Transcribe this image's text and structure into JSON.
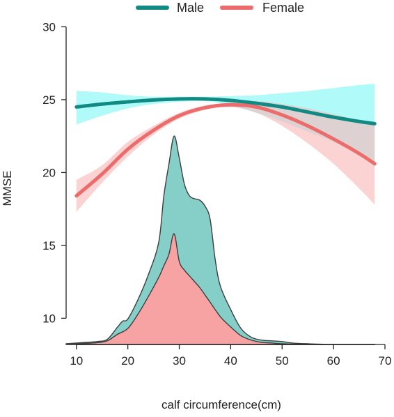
{
  "chart_data": {
    "type": "line",
    "title": "",
    "xlabel": "calf circumference(cm)",
    "ylabel": "MMSE",
    "xlim": [
      8,
      70
    ],
    "ylim": [
      8.2,
      30.5
    ],
    "xticks": [
      "10",
      "20",
      "30",
      "40",
      "50",
      "60",
      "70"
    ],
    "yticks": [
      "10",
      "15",
      "20",
      "25",
      "30"
    ],
    "legend": {
      "placement": "top",
      "entries": [
        "Male",
        "Female"
      ]
    },
    "grid": false,
    "series": [
      {
        "name": "Male",
        "color": "#128a84",
        "band_color": "#7ff7f7",
        "x": [
          10,
          15,
          20,
          25,
          30,
          35,
          40,
          45,
          50,
          55,
          60,
          65,
          68
        ],
        "y": [
          24.5,
          24.7,
          24.85,
          24.98,
          25.05,
          25.05,
          24.95,
          24.75,
          24.5,
          24.15,
          23.8,
          23.5,
          23.35
        ],
        "lower": [
          23.3,
          23.9,
          24.4,
          24.7,
          24.85,
          24.9,
          24.6,
          24.1,
          23.5,
          22.8,
          22.1,
          21.2,
          20.5
        ],
        "upper": [
          25.6,
          25.5,
          25.3,
          25.2,
          25.2,
          25.2,
          25.25,
          25.3,
          25.45,
          25.6,
          25.8,
          26.0,
          26.1
        ]
      },
      {
        "name": "Female",
        "color": "#ec6b6b",
        "band_color": "#f8b8b8",
        "x": [
          10,
          15,
          20,
          25,
          30,
          35,
          40,
          45,
          50,
          55,
          60,
          65,
          68
        ],
        "y": [
          18.4,
          19.9,
          21.6,
          22.9,
          23.9,
          24.45,
          24.65,
          24.5,
          23.95,
          23.2,
          22.3,
          21.3,
          20.6
        ],
        "lower": [
          17.3,
          19.3,
          21.1,
          22.6,
          23.7,
          24.3,
          24.5,
          24.1,
          23.2,
          22.0,
          20.6,
          18.9,
          17.8
        ],
        "upper": [
          19.5,
          20.5,
          22.1,
          23.2,
          24.1,
          24.6,
          24.8,
          24.9,
          24.7,
          24.4,
          24.0,
          23.6,
          23.3
        ]
      }
    ],
    "densities": [
      {
        "name": "Male",
        "fill": "#86cfc9",
        "x": [
          8,
          10,
          12,
          14,
          16,
          18,
          19,
          20,
          22,
          24,
          26,
          27,
          28,
          29,
          30,
          31,
          32,
          33,
          34,
          35,
          36,
          37,
          38,
          40,
          42,
          44,
          46,
          48,
          50,
          52,
          55,
          60,
          65,
          68
        ],
        "y": [
          8.25,
          8.3,
          8.35,
          8.4,
          8.55,
          9.4,
          9.8,
          9.95,
          11.3,
          13.0,
          15.2,
          18.4,
          20.6,
          22.5,
          21.0,
          19.2,
          18.4,
          18.2,
          18.1,
          17.7,
          16.8,
          14.0,
          12.2,
          10.6,
          9.3,
          8.7,
          8.5,
          8.45,
          8.4,
          8.3,
          8.25,
          8.2,
          8.2,
          8.2
        ]
      },
      {
        "name": "Female",
        "fill": "#f7a3a3",
        "x": [
          8,
          10,
          12,
          14,
          16,
          18,
          20,
          22,
          24,
          26,
          27,
          28,
          29,
          30,
          31,
          32,
          33,
          34,
          35,
          36,
          38,
          40,
          42,
          44,
          46,
          48,
          50,
          55,
          60,
          65,
          68
        ],
        "y": [
          8.22,
          8.25,
          8.28,
          8.32,
          8.45,
          8.9,
          9.3,
          10.3,
          11.5,
          12.8,
          13.6,
          14.4,
          15.8,
          13.9,
          13.3,
          12.9,
          12.5,
          12.1,
          11.6,
          11.1,
          10.1,
          9.4,
          8.8,
          8.5,
          8.35,
          8.3,
          8.25,
          8.2,
          8.2,
          8.2,
          8.2
        ]
      }
    ]
  }
}
